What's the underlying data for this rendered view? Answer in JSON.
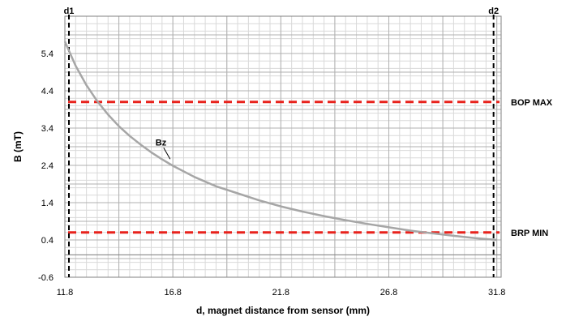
{
  "chart_data": {
    "type": "line",
    "xlabel": "d, magnet distance from sensor (mm)",
    "ylabel": "B (mT)",
    "xlim": [
      11.8,
      32.0
    ],
    "ylim": [
      -0.6,
      6.4
    ],
    "x_ticks": [
      "11.8",
      "16.8",
      "21.8",
      "26.8",
      "31.8"
    ],
    "y_ticks": [
      "-0.6",
      "0.4",
      "1.4",
      "2.4",
      "3.4",
      "4.4",
      "5.4"
    ],
    "grid": true,
    "series": [
      {
        "name": "Bz",
        "color": "#a6a6a6",
        "x": [
          11.8,
          12.3,
          12.8,
          13.3,
          13.8,
          14.3,
          14.8,
          15.3,
          15.8,
          16.3,
          16.8,
          17.8,
          18.8,
          19.8,
          20.8,
          21.8,
          22.8,
          23.8,
          24.8,
          25.8,
          26.8,
          27.8,
          28.8,
          29.8,
          30.8,
          31.8
        ],
        "y": [
          5.72,
          5.07,
          4.55,
          4.12,
          3.76,
          3.45,
          3.19,
          2.96,
          2.75,
          2.56,
          2.39,
          2.09,
          1.84,
          1.65,
          1.46,
          1.3,
          1.16,
          1.04,
          0.93,
          0.83,
          0.74,
          0.65,
          0.58,
          0.51,
          0.45,
          0.4
        ]
      }
    ],
    "thresholds": [
      {
        "label": "BOP MAX",
        "value": 4.1,
        "color": "#e8221c"
      },
      {
        "label": "BRP MIN",
        "value": 0.6,
        "color": "#e8221c"
      }
    ],
    "markers": [
      {
        "label": "d1",
        "x": 11.8
      },
      {
        "label": "d2",
        "x": 31.8
      }
    ],
    "series_label": "Bz"
  }
}
